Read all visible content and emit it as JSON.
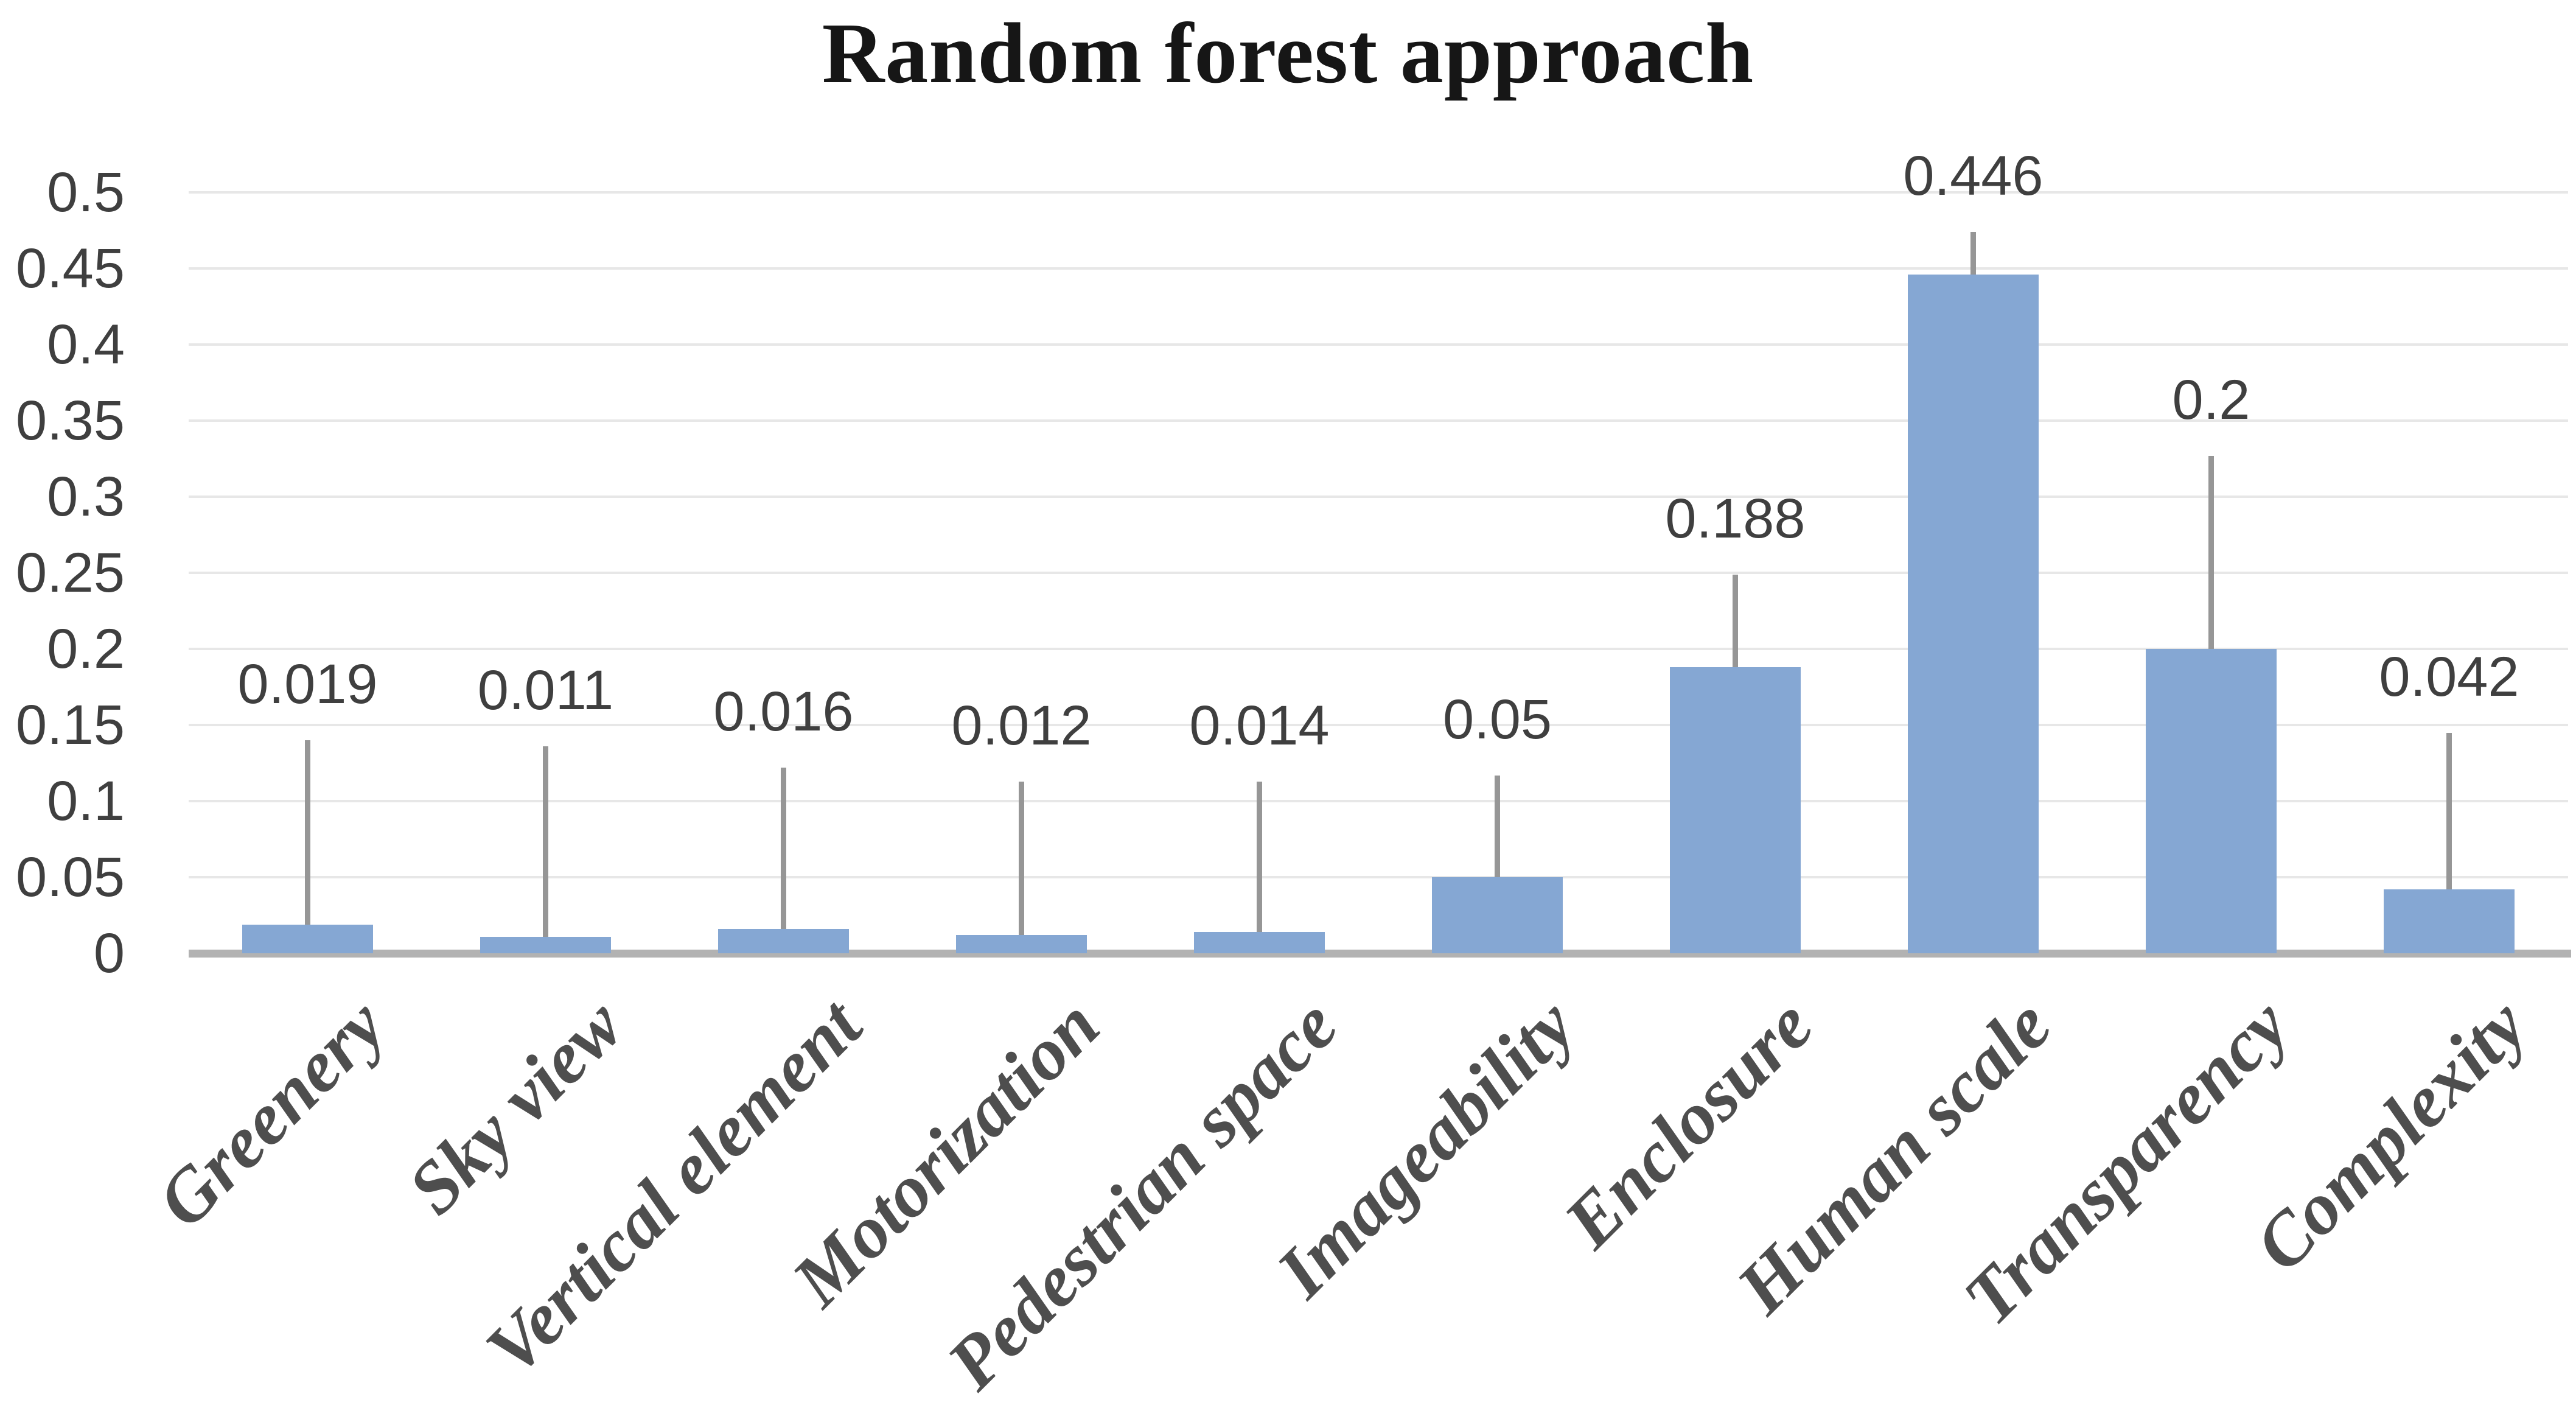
{
  "title": "Random forest approach",
  "chart_data": {
    "type": "bar",
    "title": "Random forest approach",
    "xlabel": "",
    "ylabel": "",
    "categories": [
      "Greenery",
      "Sky view",
      "Vertical element",
      "Motorization",
      "Pedestrian space",
      "Imageability",
      "Enclosure",
      "Human scale",
      "Transparency",
      "Complexity"
    ],
    "values": [
      0.019,
      0.011,
      0.016,
      0.012,
      0.014,
      0.05,
      0.188,
      0.446,
      0.2,
      0.042
    ],
    "value_labels": [
      "0.019",
      "0.011",
      "0.016",
      "0.012",
      "0.014",
      "0.05",
      "0.188",
      "0.446",
      "0.2",
      "0.042"
    ],
    "error_whisker_top": [
      0.14,
      0.136,
      0.122,
      0.113,
      0.113,
      0.117,
      0.249,
      0.474,
      0.327,
      0.145
    ],
    "y_ticks": [
      "0",
      "0.05",
      "0.1",
      "0.15",
      "0.2",
      "0.25",
      "0.3",
      "0.35",
      "0.4",
      "0.45",
      "0.5"
    ],
    "ylim": [
      0,
      0.5
    ],
    "y_tick_step": 0.05,
    "grid": true,
    "legend": "none",
    "colors": {
      "bar": "#85a7d3",
      "error_bar": "#969696",
      "axis_line": "#b2b2b2",
      "gridline": "#e7e7e7",
      "tick_text": "#3f3f3f",
      "category_text": "#4e4e4e",
      "title_text": "#161616"
    }
  }
}
